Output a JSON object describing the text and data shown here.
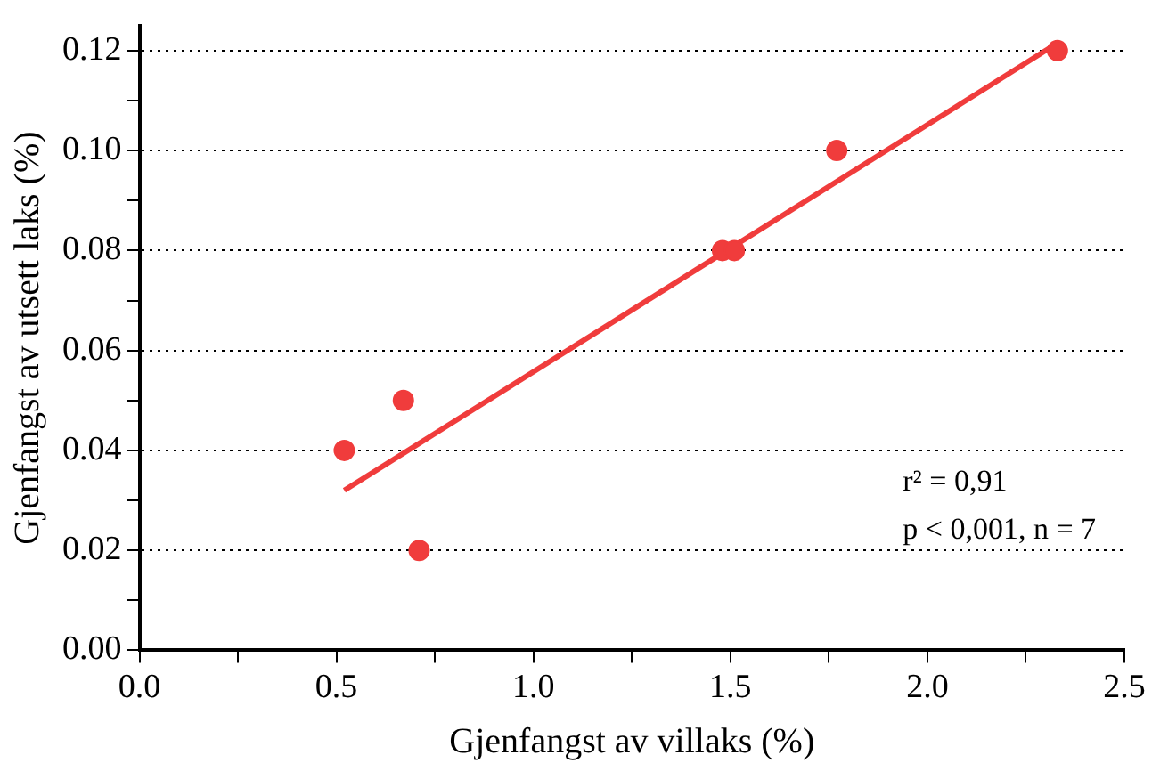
{
  "chart_data": {
    "type": "scatter",
    "xlabel": "Gjenfangst av villaks (%)",
    "ylabel": "Gjenfangst av utsett laks (%)",
    "series": [
      {
        "type": "scatter",
        "color": "#f03c3c",
        "x": [
          0.52,
          0.67,
          0.71,
          1.48,
          1.51,
          1.77,
          2.33
        ],
        "values": [
          0.04,
          0.05,
          0.02,
          0.08,
          0.08,
          0.1,
          0.12
        ],
        "marker": "circle"
      },
      {
        "type": "line",
        "color": "#f03c3c",
        "x": [
          0.52,
          2.32
        ],
        "values": [
          0.032,
          0.121
        ],
        "marker": "none"
      }
    ],
    "xlim": [
      0,
      2.5
    ],
    "xticks": [
      {
        "value": 0,
        "label": "0.0"
      },
      {
        "value": 0.25,
        "label": null
      },
      {
        "value": 0.5,
        "label": "0.5"
      },
      {
        "value": 0.75,
        "label": null
      },
      {
        "value": 1,
        "label": "1.0"
      },
      {
        "value": 1.25,
        "label": null
      },
      {
        "value": 1.5,
        "label": "1.5"
      },
      {
        "value": 1.75,
        "label": null
      },
      {
        "value": 2,
        "label": "2.0"
      },
      {
        "value": 2.25,
        "label": null
      },
      {
        "value": 2.5,
        "label": "2.5"
      }
    ],
    "ylim": [
      0,
      0.125
    ],
    "yticks": [
      {
        "value": 0,
        "label": "0.00"
      },
      {
        "value": 0.01,
        "label": null
      },
      {
        "value": 0.02,
        "label": "0.02"
      },
      {
        "value": 0.03,
        "label": null
      },
      {
        "value": 0.04,
        "label": "0.04"
      },
      {
        "value": 0.05,
        "label": null
      },
      {
        "value": 0.06,
        "label": "0.06"
      },
      {
        "value": 0.07,
        "label": null
      },
      {
        "value": 0.08,
        "label": "0.08"
      },
      {
        "value": 0.09,
        "label": null
      },
      {
        "value": 0.1,
        "label": "0.10"
      },
      {
        "value": 0.11,
        "label": null
      },
      {
        "value": 0.12,
        "label": "0.12"
      }
    ],
    "grid": "y",
    "legend": false,
    "line_style": "solid",
    "annotations": [
      "r² = 0,91",
      "p < 0,001, n = 7"
    ]
  }
}
